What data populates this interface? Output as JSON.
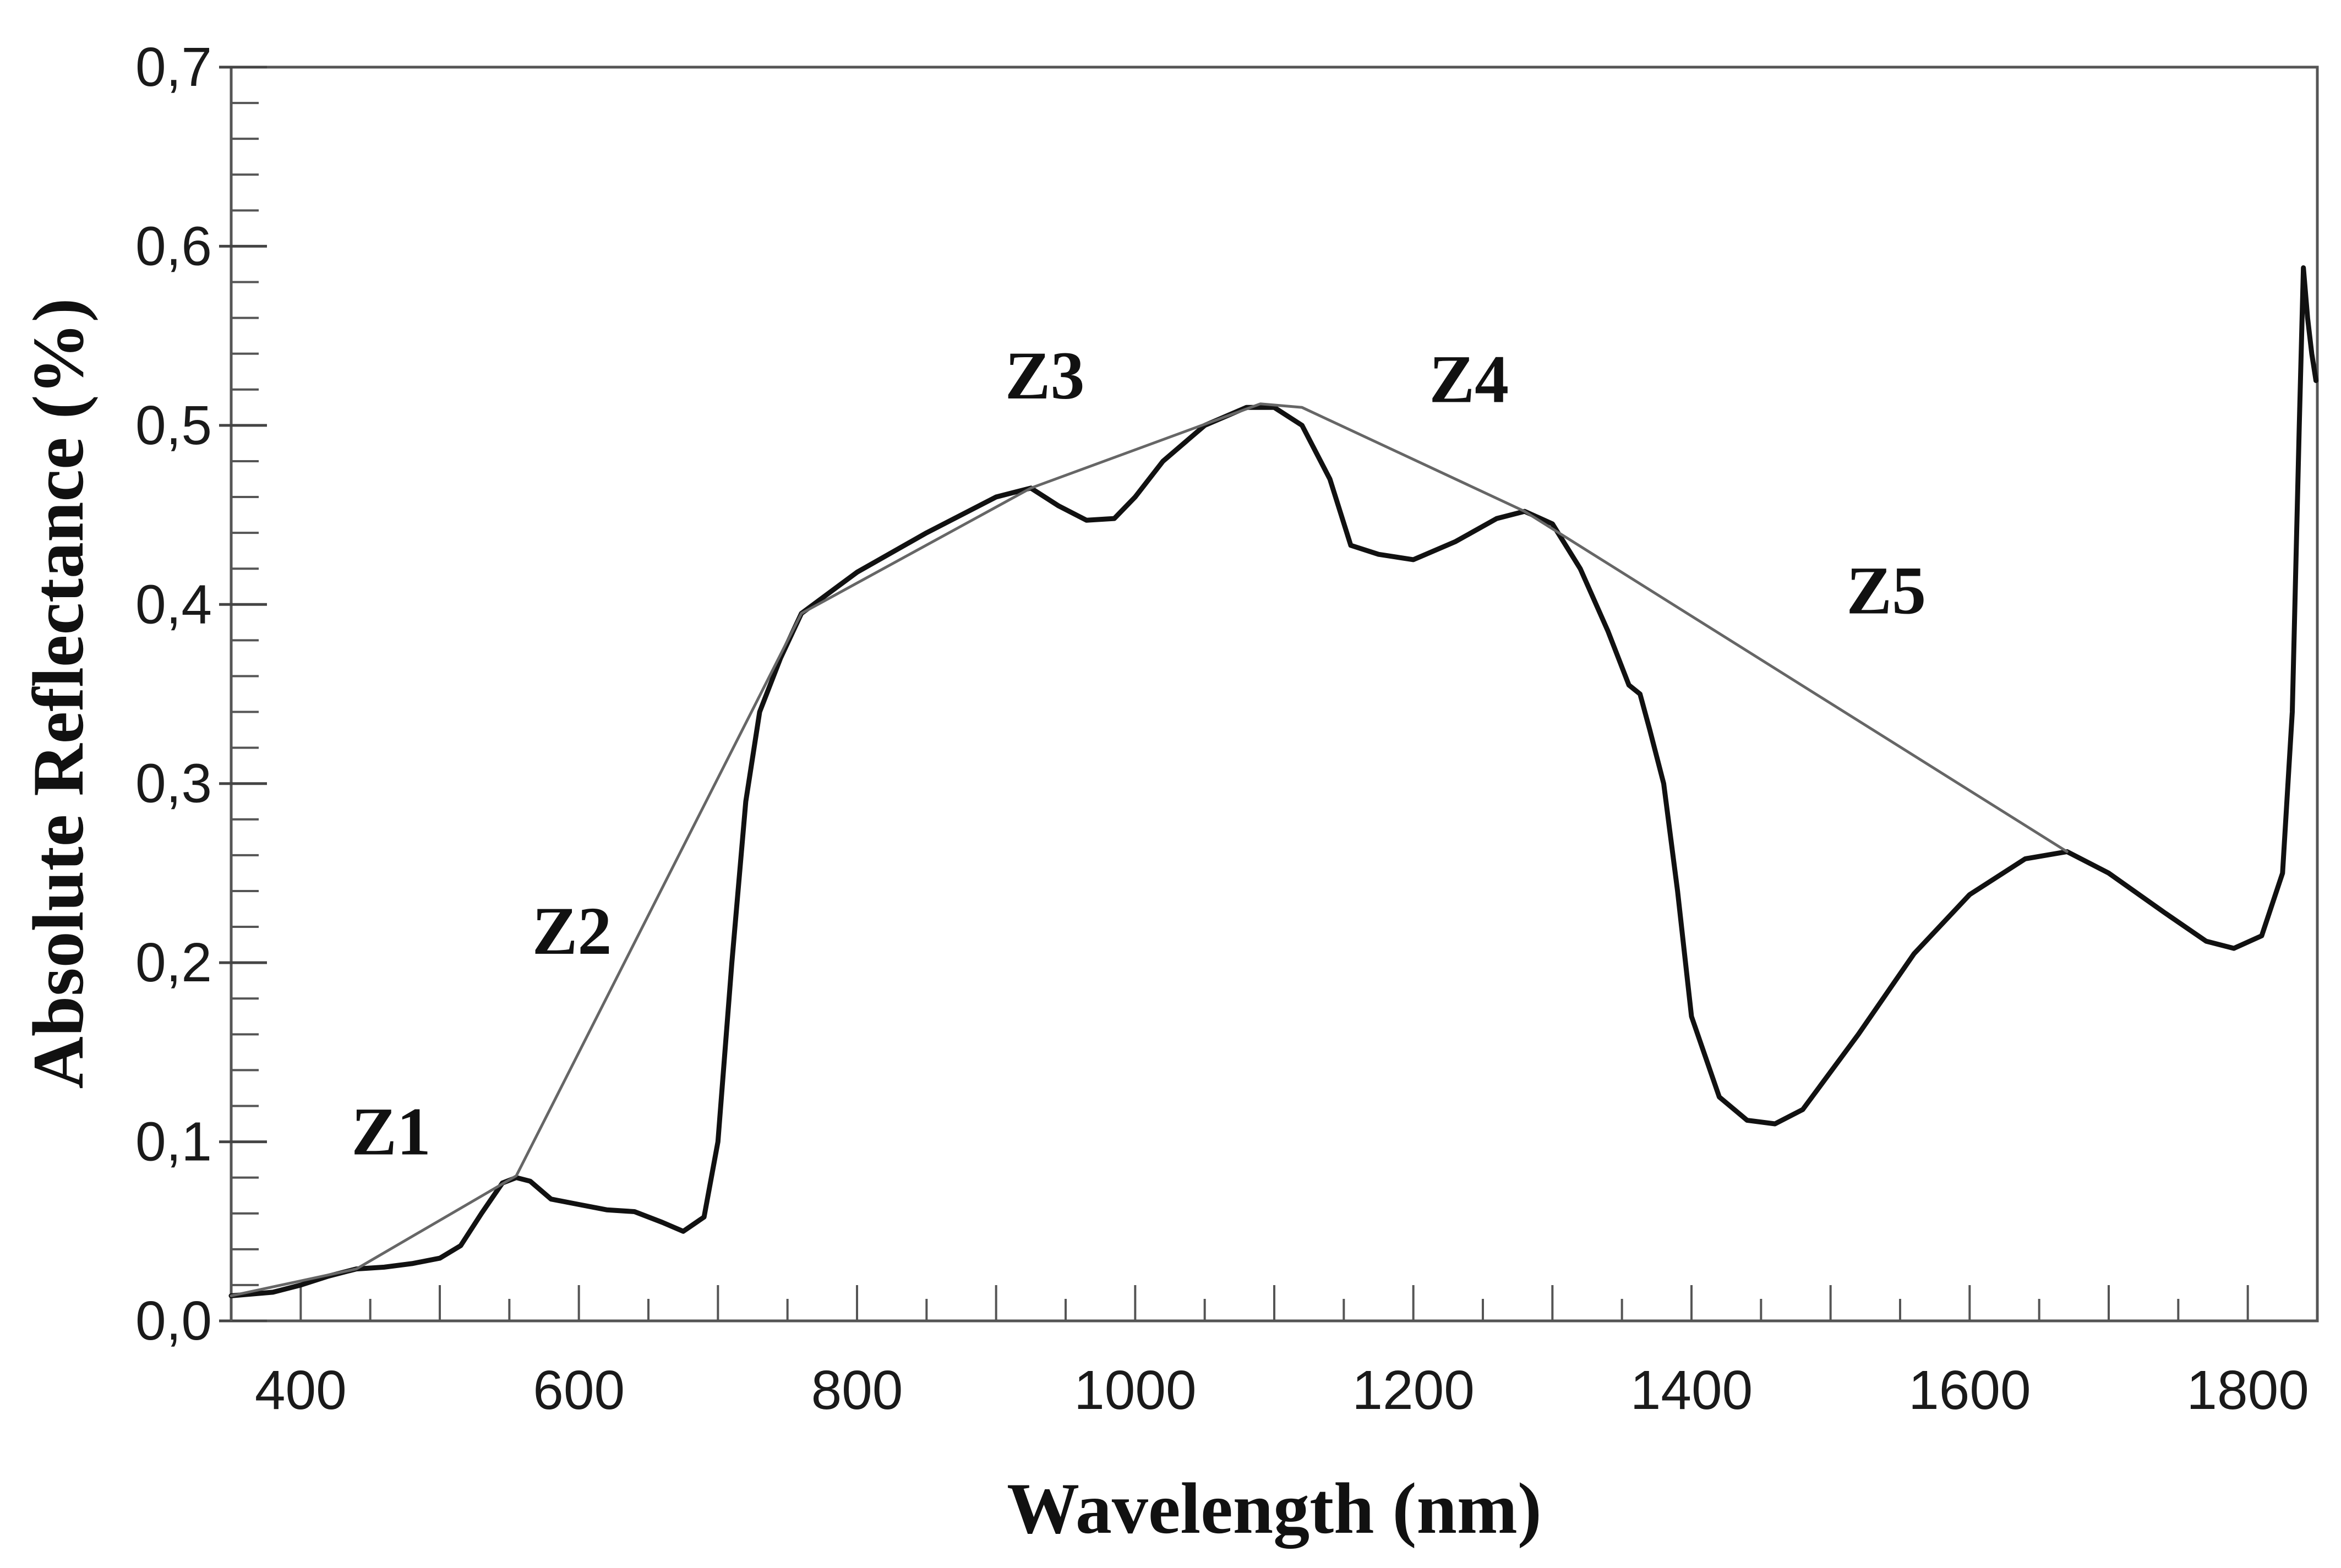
{
  "chart_data": {
    "type": "line",
    "title": "",
    "xlabel": "Wavelength (nm)",
    "ylabel": "Absolute Reflectance (%)",
    "xlim": [
      350,
      1850
    ],
    "ylim": [
      0,
      0.7
    ],
    "grid": false,
    "x_tick_labels": [
      "400",
      "600",
      "800",
      "1000",
      "1200",
      "1400",
      "1600",
      "1800"
    ],
    "y_tick_labels": [
      "0,0",
      "0,1",
      "0,2",
      "0,3",
      "0,4",
      "0,5",
      "0,6",
      "0,7"
    ],
    "series": [
      {
        "name": "reflectance spectrum",
        "color": "#111111",
        "points": [
          [
            350,
            0.014
          ],
          [
            380,
            0.016
          ],
          [
            400,
            0.02
          ],
          [
            420,
            0.025
          ],
          [
            440,
            0.029
          ],
          [
            460,
            0.03
          ],
          [
            480,
            0.032
          ],
          [
            500,
            0.035
          ],
          [
            515,
            0.042
          ],
          [
            530,
            0.06
          ],
          [
            545,
            0.077
          ],
          [
            555,
            0.08
          ],
          [
            565,
            0.078
          ],
          [
            580,
            0.068
          ],
          [
            600,
            0.065
          ],
          [
            620,
            0.062
          ],
          [
            640,
            0.061
          ],
          [
            660,
            0.055
          ],
          [
            675,
            0.05
          ],
          [
            690,
            0.058
          ],
          [
            700,
            0.1
          ],
          [
            710,
            0.2
          ],
          [
            720,
            0.29
          ],
          [
            730,
            0.34
          ],
          [
            745,
            0.37
          ],
          [
            760,
            0.395
          ],
          [
            800,
            0.418
          ],
          [
            850,
            0.44
          ],
          [
            900,
            0.46
          ],
          [
            925,
            0.465
          ],
          [
            945,
            0.455
          ],
          [
            965,
            0.447
          ],
          [
            985,
            0.448
          ],
          [
            1000,
            0.46
          ],
          [
            1020,
            0.48
          ],
          [
            1050,
            0.5
          ],
          [
            1080,
            0.51
          ],
          [
            1100,
            0.51
          ],
          [
            1120,
            0.5
          ],
          [
            1140,
            0.47
          ],
          [
            1155,
            0.433
          ],
          [
            1175,
            0.428
          ],
          [
            1200,
            0.425
          ],
          [
            1230,
            0.435
          ],
          [
            1260,
            0.448
          ],
          [
            1280,
            0.452
          ],
          [
            1300,
            0.445
          ],
          [
            1320,
            0.42
          ],
          [
            1340,
            0.385
          ],
          [
            1355,
            0.355
          ],
          [
            1363,
            0.35
          ],
          [
            1370,
            0.33
          ],
          [
            1380,
            0.3
          ],
          [
            1390,
            0.24
          ],
          [
            1400,
            0.17
          ],
          [
            1420,
            0.125
          ],
          [
            1440,
            0.112
          ],
          [
            1460,
            0.11
          ],
          [
            1480,
            0.118
          ],
          [
            1520,
            0.16
          ],
          [
            1560,
            0.205
          ],
          [
            1600,
            0.238
          ],
          [
            1640,
            0.258
          ],
          [
            1670,
            0.262
          ],
          [
            1700,
            0.25
          ],
          [
            1740,
            0.228
          ],
          [
            1770,
            0.212
          ],
          [
            1790,
            0.208
          ],
          [
            1810,
            0.215
          ],
          [
            1825,
            0.25
          ],
          [
            1832,
            0.34
          ],
          [
            1837,
            0.5
          ],
          [
            1840,
            0.588
          ],
          [
            1843,
            0.56
          ],
          [
            1846,
            0.54
          ],
          [
            1849,
            0.525
          ]
        ]
      },
      {
        "name": "convex hull",
        "color": "#666666",
        "points": [
          [
            350,
            0.014
          ],
          [
            440,
            0.029
          ],
          [
            555,
            0.081
          ],
          [
            760,
            0.395
          ],
          [
            925,
            0.465
          ],
          [
            1090,
            0.512
          ],
          [
            1120,
            0.51
          ],
          [
            1280,
            0.452
          ],
          [
            1670,
            0.262
          ]
        ]
      }
    ],
    "annotations": [
      {
        "text": "Z1",
        "x": 465,
        "y": 0.093
      },
      {
        "text": "Z2",
        "x": 595,
        "y": 0.205
      },
      {
        "text": "Z3",
        "x": 935,
        "y": 0.515
      },
      {
        "text": "Z4",
        "x": 1240,
        "y": 0.513
      },
      {
        "text": "Z5",
        "x": 1540,
        "y": 0.395
      }
    ]
  }
}
